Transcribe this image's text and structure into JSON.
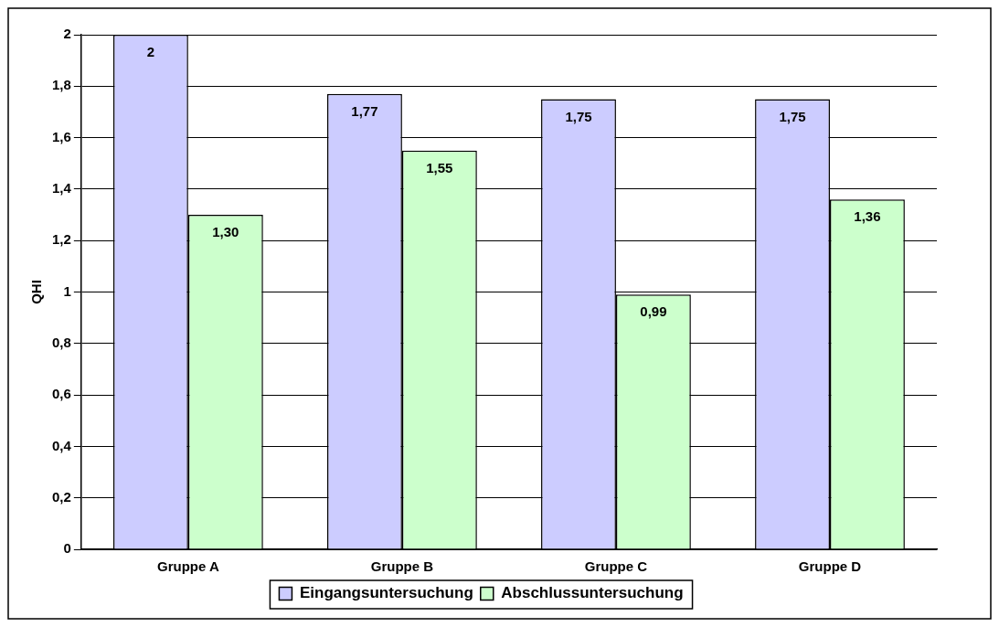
{
  "chart_data": {
    "type": "bar",
    "ylabel": "QHI",
    "categories": [
      "Gruppe A",
      "Gruppe B",
      "Gruppe C",
      "Gruppe D"
    ],
    "series": [
      {
        "name": "Eingangsuntersuchung",
        "color": "#ccccff",
        "values": [
          2,
          1.77,
          1.75,
          1.75
        ],
        "value_labels": [
          "2",
          "1,77",
          "1,75",
          "1,75"
        ]
      },
      {
        "name": "Abschlussuntersuchung",
        "color": "#ccffcc",
        "values": [
          1.3,
          1.55,
          0.99,
          1.36
        ],
        "value_labels": [
          "1,30",
          "1,55",
          "0,99",
          "1,36"
        ]
      }
    ],
    "ylim": [
      0,
      2
    ],
    "yticks": [
      0,
      {
        "value": 0.2,
        "label": "0,2"
      },
      {
        "value": 0.4,
        "label": "0,4"
      },
      {
        "value": 0.6,
        "label": "0,6"
      },
      {
        "value": 0.8,
        "label": "0,8"
      },
      1,
      {
        "value": 1.2,
        "label": "1,2"
      },
      {
        "value": 1.4,
        "label": "1,4"
      },
      {
        "value": 1.6,
        "label": "1,6"
      },
      {
        "value": 1.8,
        "label": "1,8"
      },
      2
    ],
    "grid": "y",
    "legend": "bottom"
  }
}
